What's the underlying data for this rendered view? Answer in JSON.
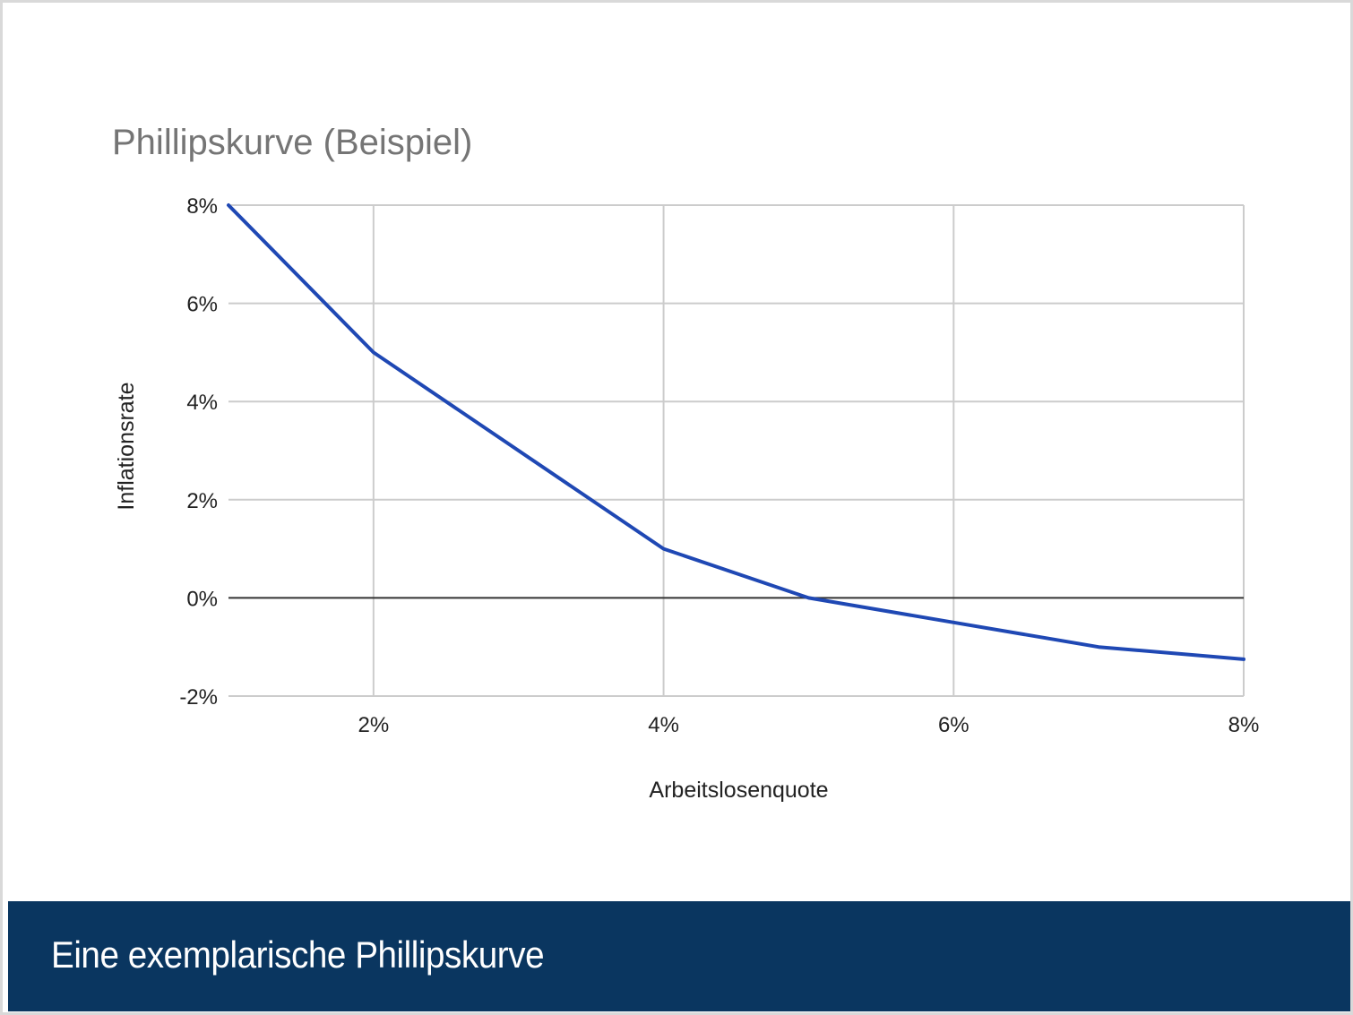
{
  "chart_data": {
    "type": "line",
    "title": "Phillipskurve (Beispiel)",
    "xlabel": "Arbeitslosenquote",
    "ylabel": "Inflationsrate",
    "xlim": [
      1,
      8
    ],
    "ylim": [
      -2,
      8
    ],
    "x_ticks": [
      2,
      4,
      6,
      8
    ],
    "x_tick_labels": [
      "2%",
      "4%",
      "6%",
      "8%"
    ],
    "y_ticks": [
      -2,
      0,
      2,
      4,
      6,
      8
    ],
    "y_tick_labels": [
      "-2%",
      "0%",
      "2%",
      "4%",
      "6%",
      "8%"
    ],
    "grid": true,
    "series": [
      {
        "x": [
          1,
          2,
          4,
          5,
          6,
          7,
          8
        ],
        "y": [
          8,
          5,
          1,
          0,
          -0.5,
          -1,
          -1.25
        ],
        "color": "#1f48b4"
      }
    ]
  },
  "caption": "Eine exemplarische Phillipskurve",
  "colors": {
    "caption_bg": "#0a3660",
    "line": "#1f48b4",
    "grid": "#cccccc",
    "zero_line": "#333333"
  }
}
